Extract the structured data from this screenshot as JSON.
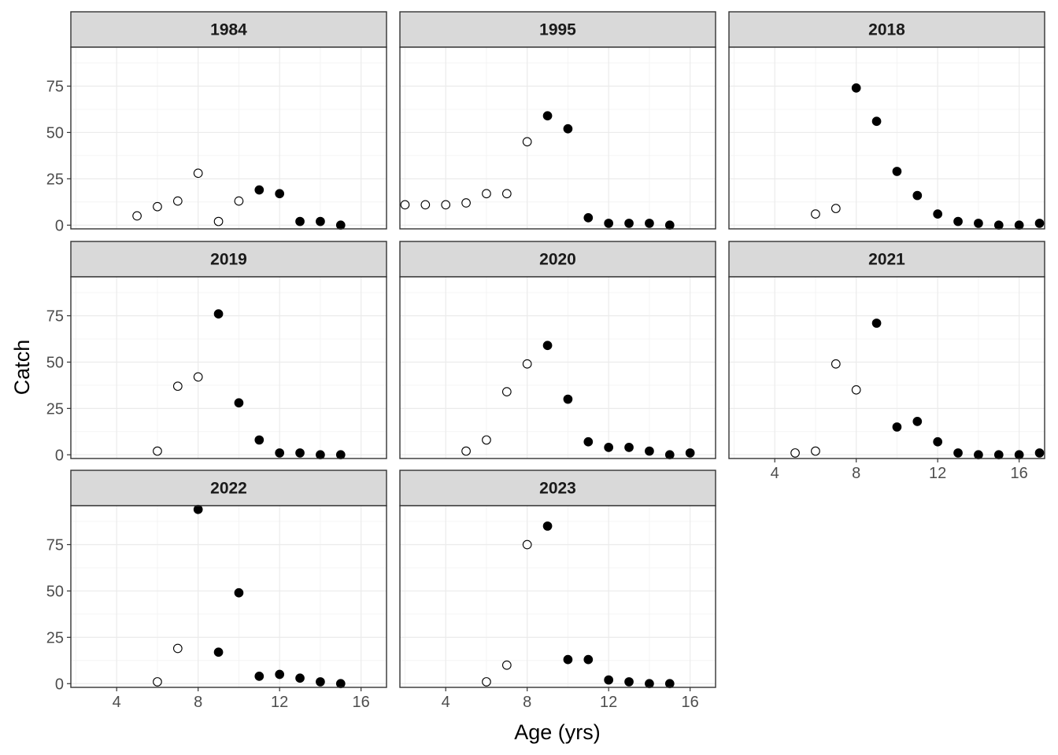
{
  "chart_data": {
    "type": "scatter",
    "xlabel": "Age (yrs)",
    "ylabel": "Catch",
    "xlim": [
      1.75,
      17.25
    ],
    "ylim": [
      -2,
      96
    ],
    "x_ticks": [
      4,
      8,
      12,
      16
    ],
    "y_ticks": [
      0,
      25,
      50,
      75
    ],
    "legend": "none",
    "point_style": {
      "open": "not fully recruited (hollow circle)",
      "filled": "fully recruited (solid circle)"
    },
    "panels": [
      {
        "strip": "1984",
        "points": [
          {
            "x": 5,
            "y": 5,
            "filled": false
          },
          {
            "x": 6,
            "y": 10,
            "filled": false
          },
          {
            "x": 7,
            "y": 13,
            "filled": false
          },
          {
            "x": 8,
            "y": 28,
            "filled": false
          },
          {
            "x": 9,
            "y": 2,
            "filled": false
          },
          {
            "x": 10,
            "y": 13,
            "filled": false
          },
          {
            "x": 11,
            "y": 19,
            "filled": true
          },
          {
            "x": 12,
            "y": 17,
            "filled": true
          },
          {
            "x": 13,
            "y": 2,
            "filled": true
          },
          {
            "x": 14,
            "y": 2,
            "filled": true
          },
          {
            "x": 15,
            "y": 0,
            "filled": true
          }
        ]
      },
      {
        "strip": "1995",
        "points": [
          {
            "x": 2,
            "y": 11,
            "filled": false
          },
          {
            "x": 3,
            "y": 11,
            "filled": false
          },
          {
            "x": 4,
            "y": 11,
            "filled": false
          },
          {
            "x": 5,
            "y": 12,
            "filled": false
          },
          {
            "x": 6,
            "y": 17,
            "filled": false
          },
          {
            "x": 7,
            "y": 17,
            "filled": false
          },
          {
            "x": 8,
            "y": 45,
            "filled": false
          },
          {
            "x": 9,
            "y": 59,
            "filled": true
          },
          {
            "x": 10,
            "y": 52,
            "filled": true
          },
          {
            "x": 11,
            "y": 4,
            "filled": true
          },
          {
            "x": 12,
            "y": 1,
            "filled": true
          },
          {
            "x": 13,
            "y": 1,
            "filled": true
          },
          {
            "x": 14,
            "y": 1,
            "filled": true
          },
          {
            "x": 15,
            "y": 0,
            "filled": true
          }
        ]
      },
      {
        "strip": "2018",
        "points": [
          {
            "x": 6,
            "y": 6,
            "filled": false
          },
          {
            "x": 7,
            "y": 9,
            "filled": false
          },
          {
            "x": 8,
            "y": 74,
            "filled": true
          },
          {
            "x": 9,
            "y": 56,
            "filled": true
          },
          {
            "x": 10,
            "y": 29,
            "filled": true
          },
          {
            "x": 11,
            "y": 16,
            "filled": true
          },
          {
            "x": 12,
            "y": 6,
            "filled": true
          },
          {
            "x": 13,
            "y": 2,
            "filled": true
          },
          {
            "x": 14,
            "y": 1,
            "filled": true
          },
          {
            "x": 15,
            "y": 0,
            "filled": true
          },
          {
            "x": 16,
            "y": 0,
            "filled": true
          },
          {
            "x": 17,
            "y": 1,
            "filled": true
          }
        ]
      },
      {
        "strip": "2019",
        "points": [
          {
            "x": 6,
            "y": 2,
            "filled": false
          },
          {
            "x": 7,
            "y": 37,
            "filled": false
          },
          {
            "x": 8,
            "y": 42,
            "filled": false
          },
          {
            "x": 9,
            "y": 76,
            "filled": true
          },
          {
            "x": 10,
            "y": 28,
            "filled": true
          },
          {
            "x": 11,
            "y": 8,
            "filled": true
          },
          {
            "x": 12,
            "y": 1,
            "filled": true
          },
          {
            "x": 13,
            "y": 1,
            "filled": true
          },
          {
            "x": 14,
            "y": 0,
            "filled": true
          },
          {
            "x": 15,
            "y": 0,
            "filled": true
          }
        ]
      },
      {
        "strip": "2020",
        "points": [
          {
            "x": 5,
            "y": 2,
            "filled": false
          },
          {
            "x": 6,
            "y": 8,
            "filled": false
          },
          {
            "x": 7,
            "y": 34,
            "filled": false
          },
          {
            "x": 8,
            "y": 49,
            "filled": false
          },
          {
            "x": 9,
            "y": 59,
            "filled": true
          },
          {
            "x": 10,
            "y": 30,
            "filled": true
          },
          {
            "x": 11,
            "y": 7,
            "filled": true
          },
          {
            "x": 12,
            "y": 4,
            "filled": true
          },
          {
            "x": 13,
            "y": 4,
            "filled": true
          },
          {
            "x": 14,
            "y": 2,
            "filled": true
          },
          {
            "x": 15,
            "y": 0,
            "filled": true
          },
          {
            "x": 16,
            "y": 1,
            "filled": true
          }
        ]
      },
      {
        "strip": "2021",
        "points": [
          {
            "x": 5,
            "y": 1,
            "filled": false
          },
          {
            "x": 6,
            "y": 2,
            "filled": false
          },
          {
            "x": 7,
            "y": 49,
            "filled": false
          },
          {
            "x": 8,
            "y": 35,
            "filled": false
          },
          {
            "x": 9,
            "y": 71,
            "filled": true
          },
          {
            "x": 10,
            "y": 15,
            "filled": true
          },
          {
            "x": 11,
            "y": 18,
            "filled": true
          },
          {
            "x": 12,
            "y": 7,
            "filled": true
          },
          {
            "x": 13,
            "y": 1,
            "filled": true
          },
          {
            "x": 14,
            "y": 0,
            "filled": true
          },
          {
            "x": 15,
            "y": 0,
            "filled": true
          },
          {
            "x": 16,
            "y": 0,
            "filled": true
          },
          {
            "x": 17,
            "y": 1,
            "filled": true
          }
        ]
      },
      {
        "strip": "2022",
        "points": [
          {
            "x": 6,
            "y": 1,
            "filled": false
          },
          {
            "x": 7,
            "y": 19,
            "filled": false
          },
          {
            "x": 8,
            "y": 94,
            "filled": true
          },
          {
            "x": 9,
            "y": 17,
            "filled": true
          },
          {
            "x": 10,
            "y": 49,
            "filled": true
          },
          {
            "x": 11,
            "y": 4,
            "filled": true
          },
          {
            "x": 12,
            "y": 5,
            "filled": true
          },
          {
            "x": 13,
            "y": 3,
            "filled": true
          },
          {
            "x": 14,
            "y": 1,
            "filled": true
          },
          {
            "x": 15,
            "y": 0,
            "filled": true
          }
        ]
      },
      {
        "strip": "2023",
        "points": [
          {
            "x": 6,
            "y": 1,
            "filled": false
          },
          {
            "x": 7,
            "y": 10,
            "filled": false
          },
          {
            "x": 8,
            "y": 75,
            "filled": false
          },
          {
            "x": 9,
            "y": 85,
            "filled": true
          },
          {
            "x": 10,
            "y": 13,
            "filled": true
          },
          {
            "x": 11,
            "y": 13,
            "filled": true
          },
          {
            "x": 12,
            "y": 2,
            "filled": true
          },
          {
            "x": 13,
            "y": 1,
            "filled": true
          },
          {
            "x": 14,
            "y": 0,
            "filled": true
          },
          {
            "x": 15,
            "y": 0,
            "filled": true
          }
        ]
      }
    ]
  }
}
